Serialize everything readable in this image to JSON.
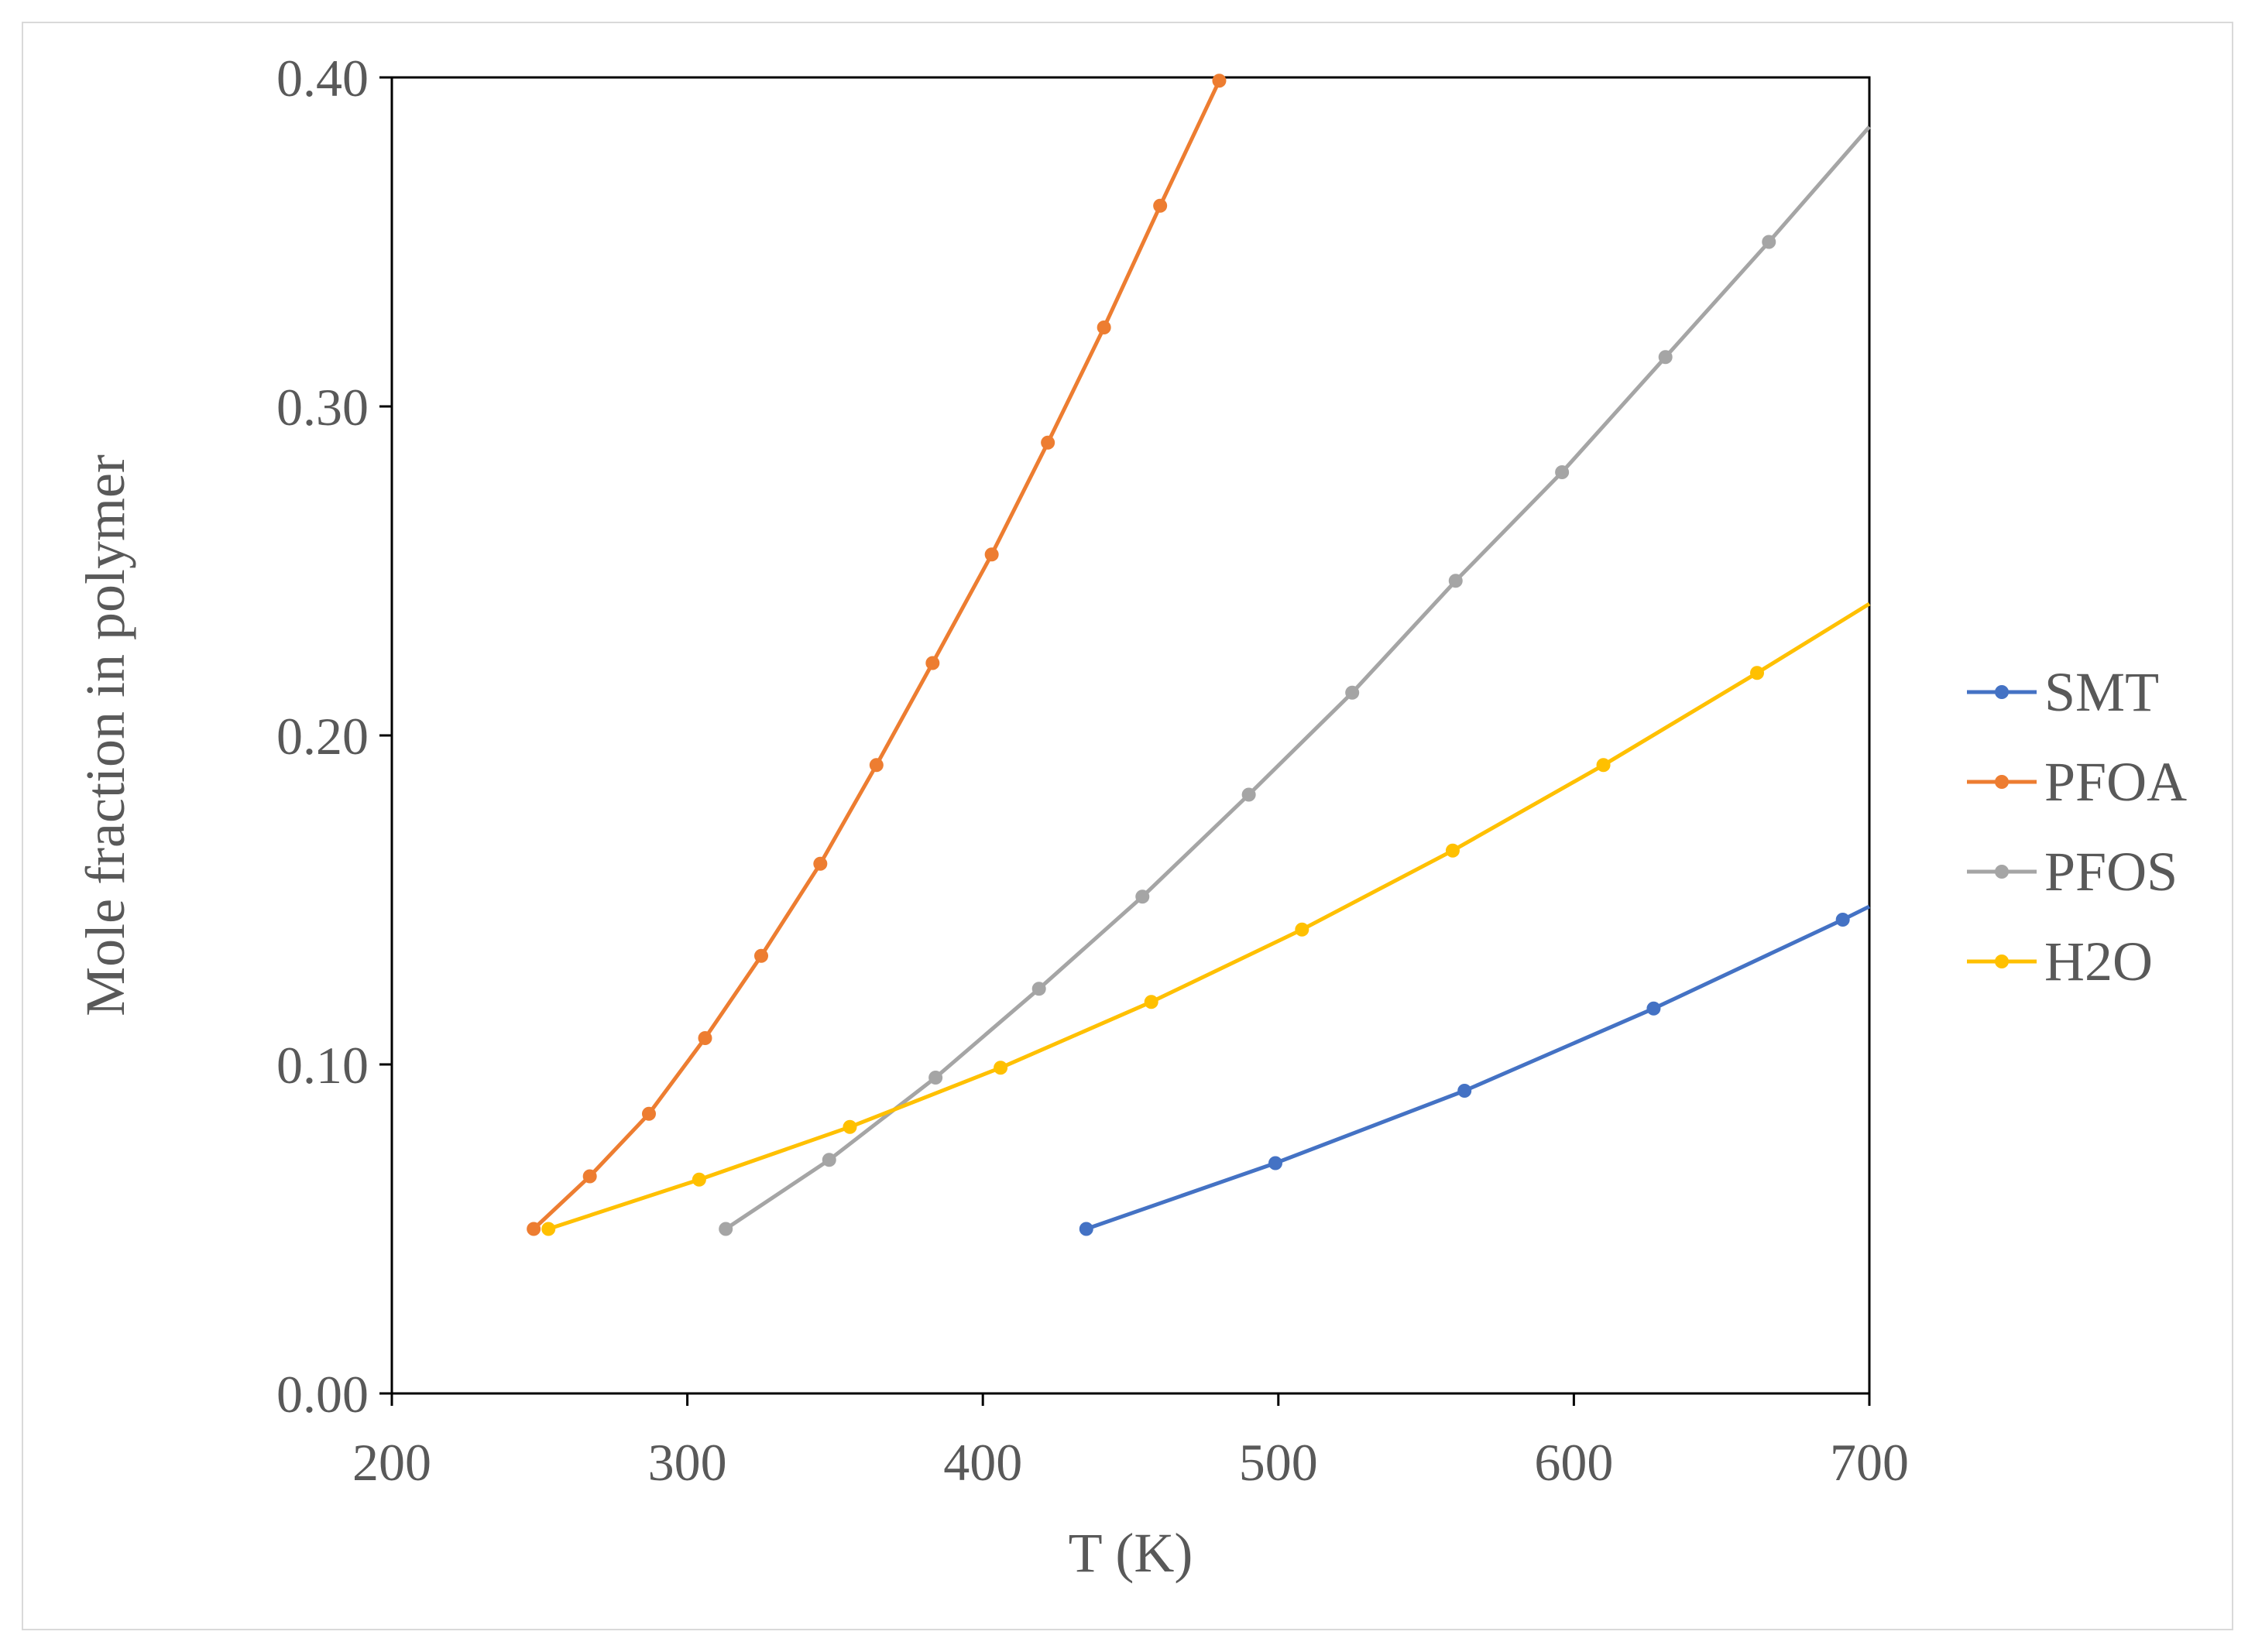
{
  "chart_data": {
    "type": "line",
    "title": "",
    "xlabel": "T (K)",
    "ylabel": "Mole fraction in polymer",
    "xlim": [
      200,
      700
    ],
    "ylim": [
      0,
      0.4
    ],
    "xticks": [
      200,
      300,
      400,
      500,
      600,
      700
    ],
    "xtick_labels": [
      "200",
      "300",
      "400",
      "500",
      "600",
      "700"
    ],
    "yticks": [
      0,
      0.1,
      0.2,
      0.3,
      0.4
    ],
    "ytick_labels": [
      "0.00",
      "0.10",
      "0.20",
      "0.30",
      "0.40"
    ],
    "grid": false,
    "legend_position": "right",
    "series": [
      {
        "name": "SMT",
        "color": "#4472c4",
        "x": [
          435,
          499,
          563,
          627,
          691,
          700
        ],
        "y": [
          0.05,
          0.07,
          0.092,
          0.117,
          0.144,
          0.148
        ],
        "markers": [
          true,
          true,
          true,
          true,
          true,
          false
        ]
      },
      {
        "name": "PFOA",
        "color": "#ed7d31",
        "x": [
          248,
          267,
          287,
          306,
          325,
          345,
          364,
          383,
          403,
          422,
          441,
          460,
          480
        ],
        "y": [
          0.05,
          0.066,
          0.085,
          0.108,
          0.133,
          0.161,
          0.191,
          0.222,
          0.255,
          0.289,
          0.324,
          0.361,
          0.399
        ],
        "markers": [
          true,
          true,
          true,
          true,
          true,
          true,
          true,
          true,
          true,
          true,
          true,
          true,
          true
        ]
      },
      {
        "name": "PFOS",
        "color": "#a5a5a5",
        "x": [
          313,
          348,
          384,
          419,
          454,
          490,
          525,
          560,
          596,
          631,
          666,
          700
        ],
        "y": [
          0.05,
          0.071,
          0.096,
          0.123,
          0.151,
          0.182,
          0.213,
          0.247,
          0.28,
          0.315,
          0.35,
          0.385
        ],
        "markers": [
          true,
          true,
          true,
          true,
          true,
          true,
          true,
          true,
          true,
          true,
          true,
          false
        ]
      },
      {
        "name": "H2O",
        "color": "#ffc000",
        "x": [
          253,
          304,
          355,
          406,
          457,
          508,
          559,
          610,
          662,
          700
        ],
        "y": [
          0.05,
          0.065,
          0.081,
          0.099,
          0.119,
          0.141,
          0.165,
          0.191,
          0.219,
          0.24
        ],
        "markers": [
          true,
          true,
          true,
          true,
          true,
          true,
          true,
          true,
          true,
          false
        ]
      }
    ]
  }
}
